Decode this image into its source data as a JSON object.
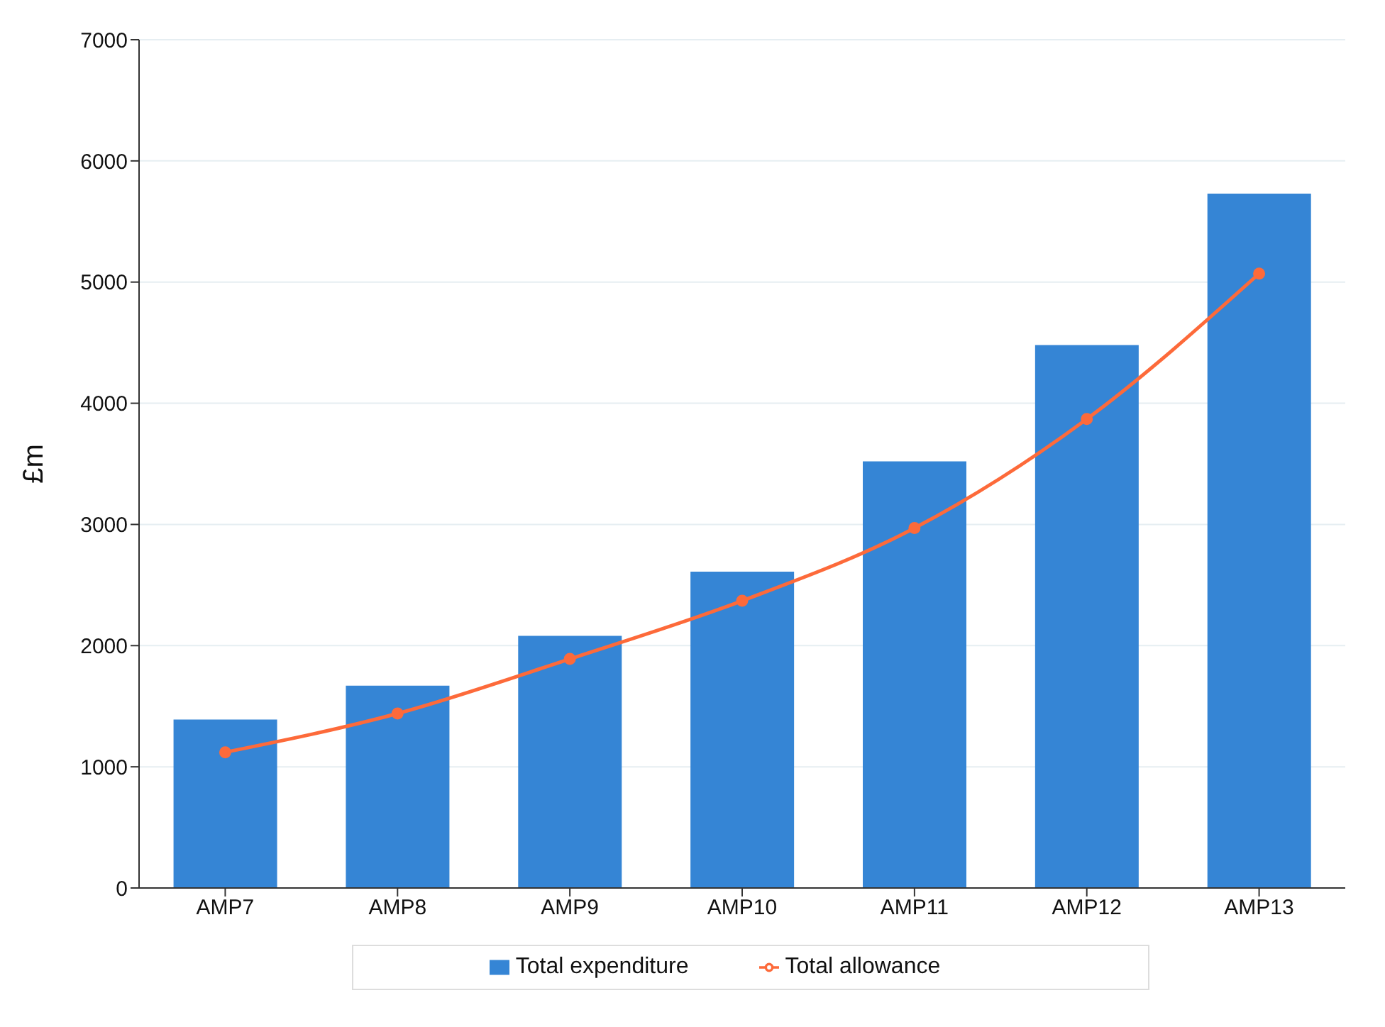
{
  "chart_data": {
    "type": "bar",
    "ylabel": "£m",
    "categories": [
      "AMP7",
      "AMP8",
      "AMP9",
      "AMP10",
      "AMP11",
      "AMP12",
      "AMP13"
    ],
    "series": [
      {
        "name": "Total expenditure",
        "color": "#3585d5",
        "values": [
          1390,
          1670,
          2080,
          2610,
          3520,
          4480,
          5730
        ]
      },
      {
        "name": "Total allowance",
        "type": "line",
        "color": "#fd6a3a",
        "marker": "circle",
        "values": [
          1120,
          1440,
          1890,
          2370,
          2970,
          3870,
          5070
        ]
      }
    ],
    "ylim": [
      0,
      7000
    ],
    "yticks": [
      0,
      1000,
      2000,
      3000,
      4000,
      5000,
      6000,
      7000
    ],
    "grid": "y",
    "legend": "bottom"
  }
}
